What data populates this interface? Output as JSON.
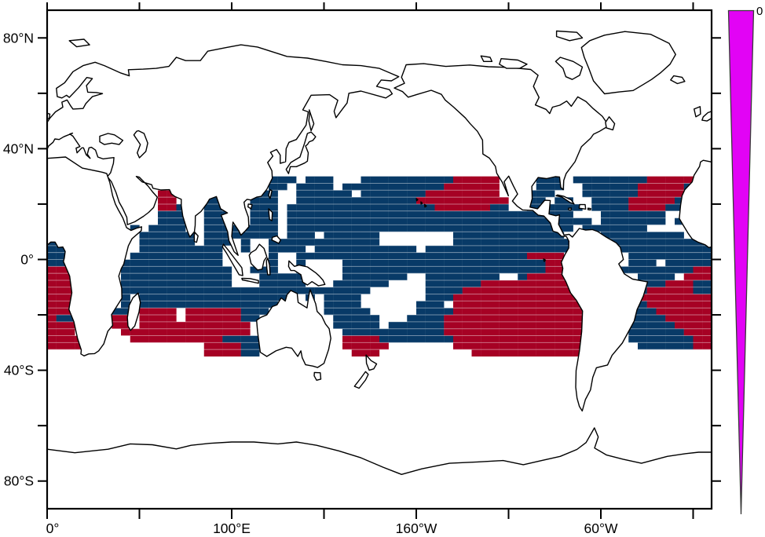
{
  "figure": {
    "background": "#ffffff",
    "frame_color": "#000000"
  },
  "axes": {
    "y_major": [
      {
        "lat": 80,
        "label": "80°N"
      },
      {
        "lat": 40,
        "label": "40°N"
      },
      {
        "lat": 0,
        "label": "0°"
      },
      {
        "lat": -40,
        "label": "40°S"
      },
      {
        "lat": -80,
        "label": "80°S"
      }
    ],
    "y_minor": [
      60,
      20,
      -20,
      -60
    ],
    "x_ticks_deg": [
      0,
      50,
      100,
      150,
      200,
      250,
      300,
      350
    ],
    "x_labels": [
      {
        "lon": 0,
        "label": "0°"
      },
      {
        "lon": 100,
        "label": "100°E"
      },
      {
        "lon": 200,
        "label": "160°W"
      },
      {
        "lon": 300,
        "label": "60°W"
      }
    ]
  },
  "colorbar": {
    "label": "0",
    "fill": "#e203f5",
    "outline": "#3a3a3a"
  },
  "chart_data": {
    "type": "heatmap",
    "title": "",
    "projection": "equirectangular world map, longitude 0–360°E left to right, latitude 90°N–90°S top to bottom",
    "grid": {
      "lon_start": 0,
      "dlon": 5,
      "lat_start": 30,
      "dlat": -2.5,
      "ncols": 72,
      "nrows": 26
    },
    "legend": {
      "B": "#083a67",
      "R": "#a60124",
      "none": "."
    },
    "colorbar_top_value": "0",
    "cells": [
      "........................BBB.BBB...BBBBBBBBBBRRRRR....BBB.BBBBBBBBRRRRR..",
      "........................BB.BBBB.BBBBBBBBBBBRRRRRR....BBB..BBBBBBRRRRRB..",
      "............RR...BBB...BB..BBBBBB.BBBBBBBRRRRRRRR...BBB...BBBBBBRRRRRB..",
      "............RR...BBB..BBB..BBBBBBBBBBBBBRRRRRRRRRR..BB.BB..BBBBRRRRRBB..",
      "............RRB..BBB..BBB.BBBBBBBBBBBBBBBBRRRRRRBB..BBBBBB.BBBBRRRRBBB..",
      "............BBB..BBB..BBB.BBBBBBBBBBBBBBBBBBBBBBBBBBBBBBB...BBBBBBB..B..",
      "............BBBB.BBB..BBB.BBBBBBBBBBBBBBBBBBBBBBBBBBBBBBBBB.BBBBBBB.B...",
      ".........B.BBBB..BBBBBBBB.BBBBBBBBBBBBBBBBBBBBBBBBBBBBBBB.BBBBBBB.....",
      "..........BBBBBB.BBBBBBBB.BBB.BBBBBB........BBBBBBBBBBBB....BBBBBBBBB...",
      "B.........BBBBBB.BBB.B..BBBBBBBBBBBB........BBBBBBBBBBBBB....BBBBBBBBBBB",
      "BB........BBBBBBBBB..B..BBBB.BBBBBBBBBBB.BBBBBBBBBBBBBBBB.....BBBBBBBBBB",
      "BB.......BBBBBBBBBB.....B..BBBBBBBBBBBBBBBBBBBBBBBBBRRRR.......BBBBBBBBB",
      "BB......BBBBBBBBBBB.....B..B....BBBBBBBBBBBBBBBBBBBBBBRR.......BBB.BBBBB",
      "RRR.....BBBBBBBBBBBB..BBB..B....BBBBBBBBBBBBBBBBBBBBBBRR......BBBBBBBBRR",
      "RRR.....BBBBBBBBBBBB...BBBBB....BBBBBBB..BBBBBBBB..BRRRRR.......BBBB.RRR",
      "RRR.....BBBBBBBBBBBB...BBBBB...BBBBBB....BBBBBBRRRRRRRRRR.......BBBRRRBB",
      "RRR.....BBBBBBBBBBBBBBBBBBBBBBBBBBB......BBBBRRRRRRRRRRRRR.....BBRRRRRBB",
      "RRR.....B.BBBBBBBBBBBBBBBB..B.BBBB.......BBBRRRRRRRRRRRRRR.....BRRRRRRRR",
      "RRR.....B.BBBBBBBBBBBBBBB.....BBBB......BBB.RRRRRRRRRRRRRR.....BBRRRRRRR",
      "RRR....BB.RRRR.RRRRRRBBB......BBBBB.....BBBBRRRRRRRRRRRRRR.....BBBRRRRRR",
      "RBB....RR.RRRR.RRRRRRBB........BBBBB...BBBBRRRRRRRRRRRRRRR.....BBBBRRRRR",
      "RRR....RR.RRRRRRRRRRRR.........BBBBB.BBBBBBRRRRRRRRRRRRRRR.....BBBBBRRRR",
      "RRR.....RRRRRRRRRRRRRR..........BBBBBBBBBBBRRRRRRRRRRRRRRR.....BBBBBBRRR",
      "RRRR.....RRRRRRRRRRBBBB.........RRRRBBBBBBBBRRRRRRRRRRRRRR.....BBBBBBBRR",
      "RRRR.............RRRRBB.........RRRRR.......RRRRRRRRRRRRRR......BBBBBBRR",
      ".................RRRRBB..........RRR..........RRRRRRRRRRRR.............."
    ]
  }
}
